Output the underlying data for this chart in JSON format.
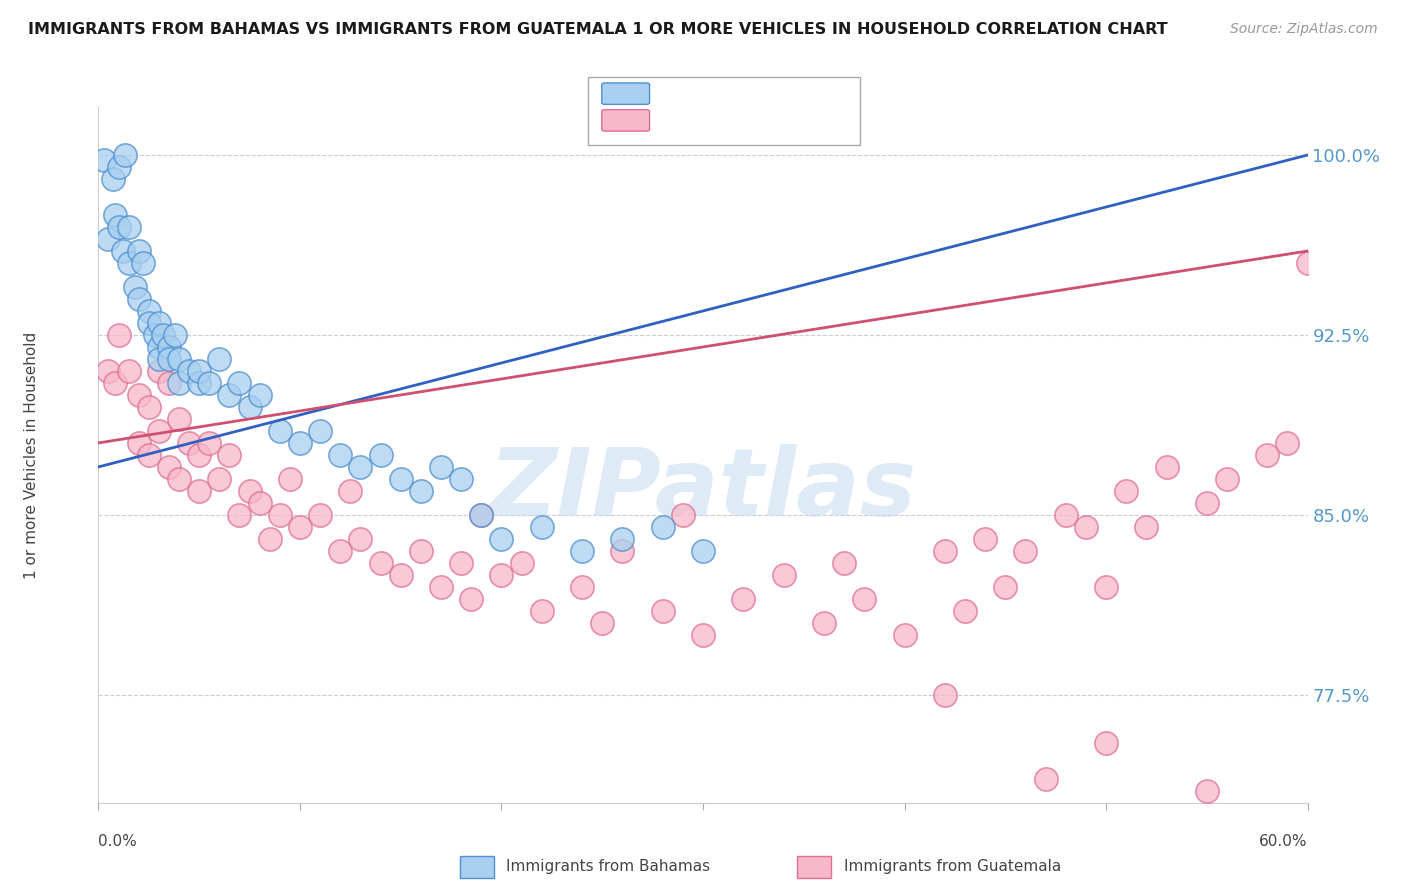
{
  "title": "IMMIGRANTS FROM BAHAMAS VS IMMIGRANTS FROM GUATEMALA 1 OR MORE VEHICLES IN HOUSEHOLD CORRELATION CHART",
  "source": "Source: ZipAtlas.com",
  "ylabel": "1 or more Vehicles in Household",
  "xlim": [
    0.0,
    60.0
  ],
  "ylim": [
    73.0,
    102.0
  ],
  "yticks": [
    77.5,
    85.0,
    92.5,
    100.0
  ],
  "xticks": [
    0.0,
    10.0,
    20.0,
    30.0,
    40.0,
    50.0,
    60.0
  ],
  "color_bahamas_fill": "#A8D0F0",
  "color_bahamas_edge": "#5090D0",
  "color_guatemala_fill": "#F8B8CC",
  "color_guatemala_edge": "#E07090",
  "color_bahamas_line": "#3060C0",
  "color_guatemala_line": "#D05070",
  "watermark_color": "#C8DCF0",
  "tick_color": "#5599CC",
  "bahamas_x": [
    0.3,
    0.5,
    0.7,
    0.8,
    1.0,
    1.0,
    1.2,
    1.3,
    1.5,
    1.5,
    1.8,
    2.0,
    2.0,
    2.2,
    2.5,
    2.5,
    2.8,
    3.0,
    3.0,
    3.0,
    3.2,
    3.5,
    3.5,
    3.8,
    4.0,
    4.0,
    4.5,
    5.0,
    5.0,
    5.5,
    6.0,
    6.5,
    7.0,
    7.5,
    8.0,
    9.0,
    10.0,
    11.0,
    12.0,
    13.0,
    14.0,
    15.0,
    16.0,
    17.0,
    18.0,
    19.0,
    20.0,
    22.0,
    24.0,
    26.0,
    28.0,
    30.0
  ],
  "bahamas_y": [
    99.8,
    96.5,
    99.0,
    97.5,
    99.5,
    97.0,
    96.0,
    100.0,
    95.5,
    97.0,
    94.5,
    96.0,
    94.0,
    95.5,
    93.5,
    93.0,
    92.5,
    93.0,
    92.0,
    91.5,
    92.5,
    92.0,
    91.5,
    92.5,
    91.5,
    90.5,
    91.0,
    90.5,
    91.0,
    90.5,
    91.5,
    90.0,
    90.5,
    89.5,
    90.0,
    88.5,
    88.0,
    88.5,
    87.5,
    87.0,
    87.5,
    86.5,
    86.0,
    87.0,
    86.5,
    85.0,
    84.0,
    84.5,
    83.5,
    84.0,
    84.5,
    83.5
  ],
  "guatemala_x": [
    0.5,
    0.8,
    1.0,
    1.5,
    2.0,
    2.0,
    2.5,
    2.5,
    3.0,
    3.0,
    3.5,
    3.5,
    4.0,
    4.0,
    4.5,
    5.0,
    5.0,
    5.5,
    6.0,
    6.5,
    7.0,
    7.5,
    8.0,
    8.5,
    9.0,
    9.5,
    10.0,
    11.0,
    12.0,
    12.5,
    13.0,
    14.0,
    15.0,
    16.0,
    17.0,
    18.0,
    18.5,
    19.0,
    20.0,
    21.0,
    22.0,
    24.0,
    25.0,
    26.0,
    28.0,
    29.0,
    30.0,
    32.0,
    34.0,
    36.0,
    37.0,
    38.0,
    40.0,
    42.0,
    43.0,
    44.0,
    45.0,
    46.0,
    48.0,
    49.0,
    50.0,
    51.0,
    52.0,
    53.0,
    55.0,
    56.0,
    58.0,
    59.0,
    60.0,
    42.0,
    47.0,
    50.0,
    55.0
  ],
  "guatemala_y": [
    91.0,
    90.5,
    92.5,
    91.0,
    90.0,
    88.0,
    89.5,
    87.5,
    91.0,
    88.5,
    90.5,
    87.0,
    89.0,
    86.5,
    88.0,
    87.5,
    86.0,
    88.0,
    86.5,
    87.5,
    85.0,
    86.0,
    85.5,
    84.0,
    85.0,
    86.5,
    84.5,
    85.0,
    83.5,
    86.0,
    84.0,
    83.0,
    82.5,
    83.5,
    82.0,
    83.0,
    81.5,
    85.0,
    82.5,
    83.0,
    81.0,
    82.0,
    80.5,
    83.5,
    81.0,
    85.0,
    80.0,
    81.5,
    82.5,
    80.5,
    83.0,
    81.5,
    80.0,
    83.5,
    81.0,
    84.0,
    82.0,
    83.5,
    85.0,
    84.5,
    82.0,
    86.0,
    84.5,
    87.0,
    85.5,
    86.5,
    87.5,
    88.0,
    95.5,
    77.5,
    74.0,
    75.5,
    73.5
  ]
}
